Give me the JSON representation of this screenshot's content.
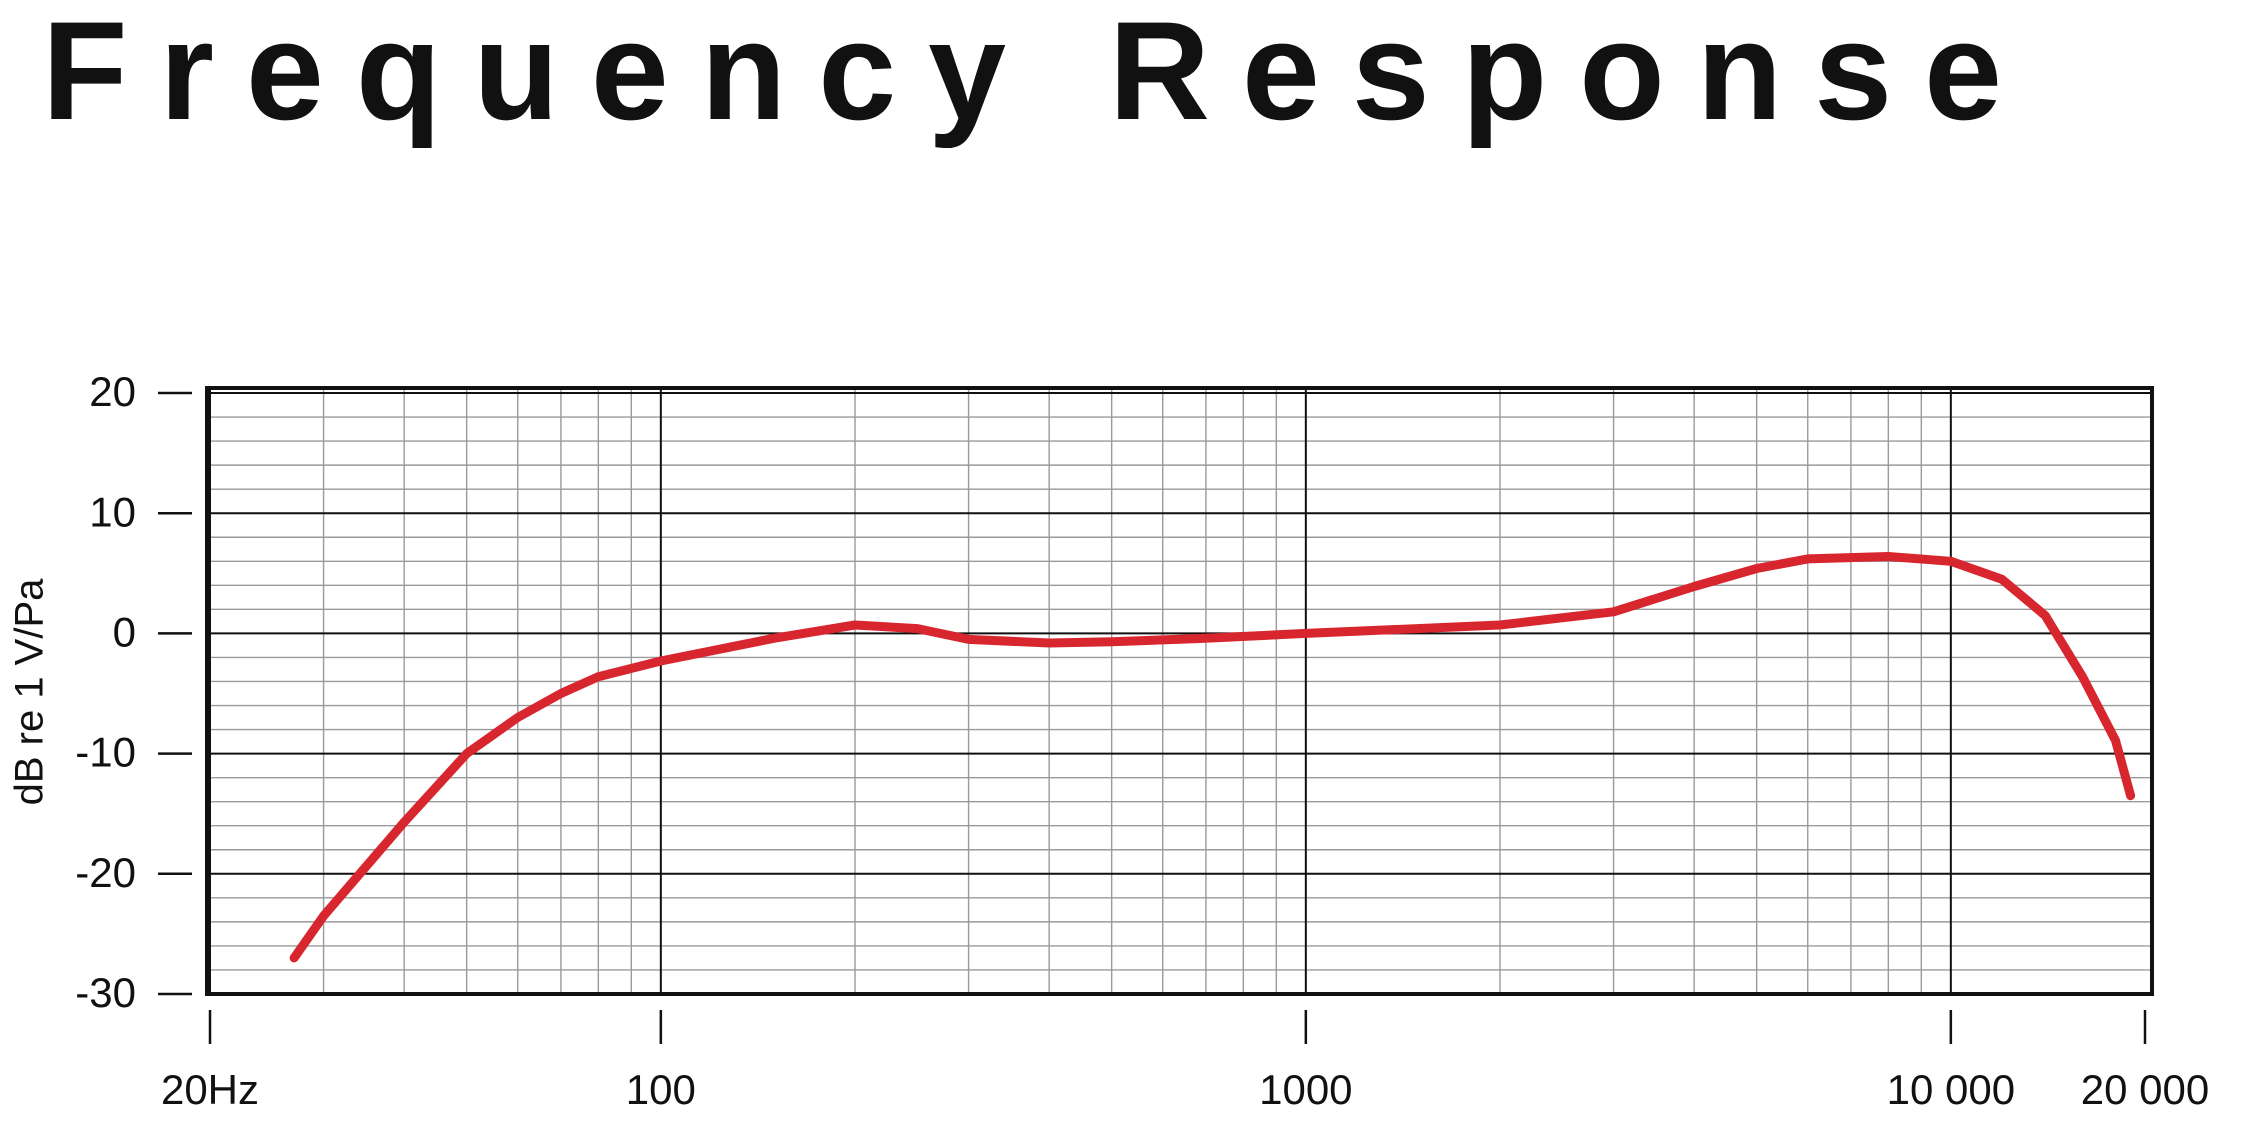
{
  "chart_data": {
    "type": "line",
    "title": "Frequency Response",
    "y_label": "dB re 1 V/Pa",
    "x_scale": "log",
    "xlim": [
      20,
      20000
    ],
    "ylim": [
      -30,
      20
    ],
    "xticks": [
      {
        "value": 20,
        "label": "20Hz"
      },
      100,
      1000,
      {
        "value": 10000,
        "label": "10 000"
      },
      {
        "value": 20000,
        "label": "20 000"
      }
    ],
    "yticks": [
      -30,
      -20,
      -10,
      0,
      10,
      20
    ],
    "minor_xticks": [
      30,
      40,
      50,
      60,
      70,
      80,
      90,
      200,
      300,
      400,
      500,
      600,
      700,
      800,
      900,
      2000,
      3000,
      4000,
      5000,
      6000,
      7000,
      8000,
      9000
    ],
    "minor_yticks": [
      -28,
      -26,
      -24,
      -22,
      -18,
      -16,
      -14,
      -12,
      -8,
      -6,
      -4,
      -2,
      2,
      4,
      6,
      8,
      12,
      14,
      16,
      18
    ],
    "grid": true,
    "x": [
      27,
      30,
      40,
      50,
      60,
      70,
      80,
      100,
      150,
      200,
      250,
      300,
      400,
      500,
      700,
      1000,
      2000,
      3000,
      4000,
      5000,
      6000,
      8000,
      10000,
      12000,
      14000,
      16000,
      18000,
      19000
    ],
    "series": [
      {
        "color": "#d8262e",
        "values": [
          -27,
          -23.5,
          -15.7,
          -10,
          -7,
          -5,
          -3.6,
          -2.3,
          -0.4,
          0.7,
          0.4,
          -0.5,
          -0.8,
          -0.7,
          -0.4,
          0,
          0.7,
          1.8,
          3.9,
          5.4,
          6.2,
          6.4,
          6.0,
          4.5,
          1.5,
          -3.6,
          -8.9,
          -13.5
        ]
      }
    ]
  }
}
